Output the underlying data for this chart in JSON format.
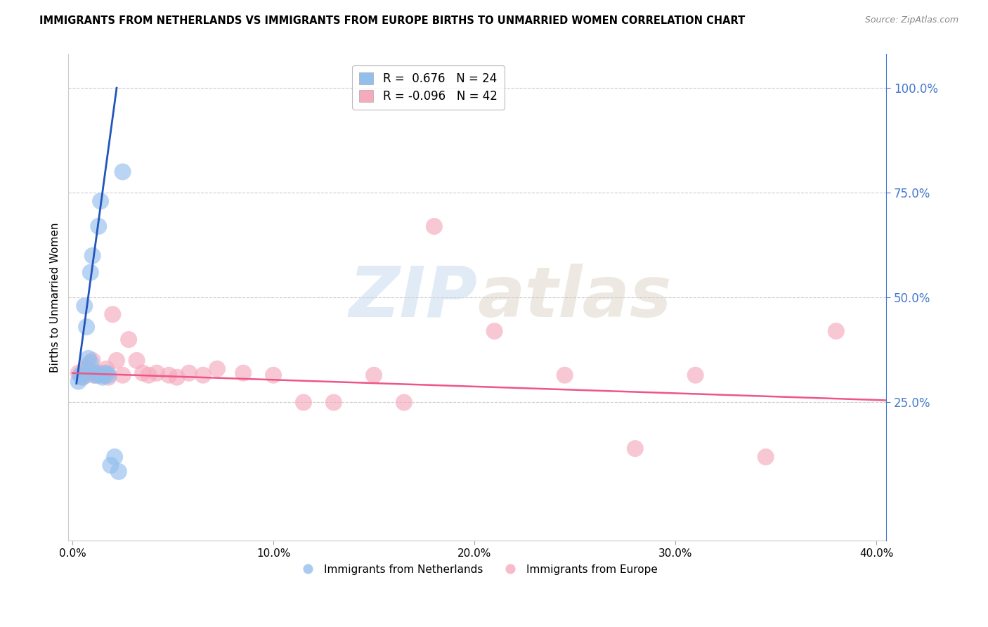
{
  "title": "IMMIGRANTS FROM NETHERLANDS VS IMMIGRANTS FROM EUROPE BIRTHS TO UNMARRIED WOMEN CORRELATION CHART",
  "source": "Source: ZipAtlas.com",
  "ylabel": "Births to Unmarried Women",
  "watermark_zip": "ZIP",
  "watermark_atlas": "atlas",
  "legend_blue_r": "0.676",
  "legend_blue_n": "24",
  "legend_pink_r": "-0.096",
  "legend_pink_n": "42",
  "xlim": [
    -0.002,
    0.405
  ],
  "ylim": [
    -0.08,
    1.08
  ],
  "xticks": [
    0.0,
    0.1,
    0.2,
    0.3,
    0.4
  ],
  "yticks_right": [
    0.25,
    0.5,
    0.75,
    1.0
  ],
  "ytick_labels_right": [
    "25.0%",
    "50.0%",
    "75.0%",
    "100.0%"
  ],
  "xtick_labels": [
    "0.0%",
    "10.0%",
    "20.0%",
    "30.0%",
    "40.0%"
  ],
  "blue_color": "#94BFED",
  "pink_color": "#F5AABE",
  "blue_line_color": "#2255BB",
  "pink_line_color": "#EE5588",
  "netherlands_x": [
    0.003,
    0.004,
    0.005,
    0.005,
    0.006,
    0.007,
    0.007,
    0.008,
    0.009,
    0.009,
    0.01,
    0.011,
    0.012,
    0.013,
    0.013,
    0.014,
    0.015,
    0.016,
    0.017,
    0.018,
    0.019,
    0.021,
    0.023,
    0.025
  ],
  "netherlands_y": [
    0.3,
    0.315,
    0.31,
    0.315,
    0.48,
    0.33,
    0.43,
    0.355,
    0.345,
    0.56,
    0.6,
    0.315,
    0.32,
    0.315,
    0.67,
    0.73,
    0.31,
    0.315,
    0.32,
    0.315,
    0.1,
    0.12,
    0.085,
    0.8
  ],
  "europe_x": [
    0.003,
    0.004,
    0.005,
    0.006,
    0.007,
    0.008,
    0.009,
    0.01,
    0.011,
    0.012,
    0.013,
    0.014,
    0.015,
    0.016,
    0.017,
    0.018,
    0.02,
    0.022,
    0.025,
    0.028,
    0.032,
    0.035,
    0.038,
    0.042,
    0.048,
    0.052,
    0.058,
    0.065,
    0.072,
    0.085,
    0.1,
    0.115,
    0.13,
    0.15,
    0.165,
    0.18,
    0.21,
    0.245,
    0.28,
    0.31,
    0.345,
    0.38
  ],
  "europe_y": [
    0.32,
    0.315,
    0.31,
    0.33,
    0.315,
    0.34,
    0.32,
    0.35,
    0.315,
    0.32,
    0.315,
    0.32,
    0.315,
    0.32,
    0.33,
    0.31,
    0.46,
    0.35,
    0.315,
    0.4,
    0.35,
    0.32,
    0.315,
    0.32,
    0.315,
    0.31,
    0.32,
    0.315,
    0.33,
    0.32,
    0.315,
    0.25,
    0.25,
    0.315,
    0.25,
    0.67,
    0.42,
    0.315,
    0.14,
    0.315,
    0.12,
    0.42
  ],
  "blue_line_x": [
    0.002,
    0.022
  ],
  "blue_line_y": [
    0.295,
    1.0
  ],
  "pink_line_x": [
    0.0,
    0.405
  ],
  "pink_line_y": [
    0.32,
    0.255
  ],
  "grid_color": "#CCCCCC",
  "bg_color": "#FFFFFF",
  "right_axis_color": "#4477CC"
}
